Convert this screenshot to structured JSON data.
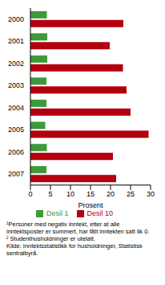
{
  "chart_data": {
    "type": "bar",
    "orientation": "horizontal",
    "categories": [
      "2000",
      "2001",
      "2002",
      "2003",
      "2004",
      "2005",
      "2006",
      "2007"
    ],
    "series": [
      {
        "name": "Desil 1",
        "color": "#3d9a3a",
        "values": [
          4.1,
          4.2,
          4.2,
          4.0,
          4.0,
          3.7,
          4.1,
          4.0
        ]
      },
      {
        "name": "Desil 10",
        "color": "#b3000f",
        "values": [
          23.2,
          19.8,
          23.1,
          24.0,
          25.0,
          29.5,
          20.6,
          21.4
        ]
      }
    ],
    "xlabel": "Prosent",
    "xlim": [
      0,
      30
    ],
    "xticks": [
      0,
      5,
      10,
      15,
      20,
      25,
      30
    ],
    "grid": false,
    "legend": "bottom",
    "notes": [
      "¹Personer med negativ inntekt, etter at alle inntektsposter er summert, har fått inntekten satt lik 0.",
      "² Studenthusholdninger er utelatt.",
      "Kilde: Inntektsstatistikk for husholdninger, Statistisk sentralbyrå."
    ]
  }
}
